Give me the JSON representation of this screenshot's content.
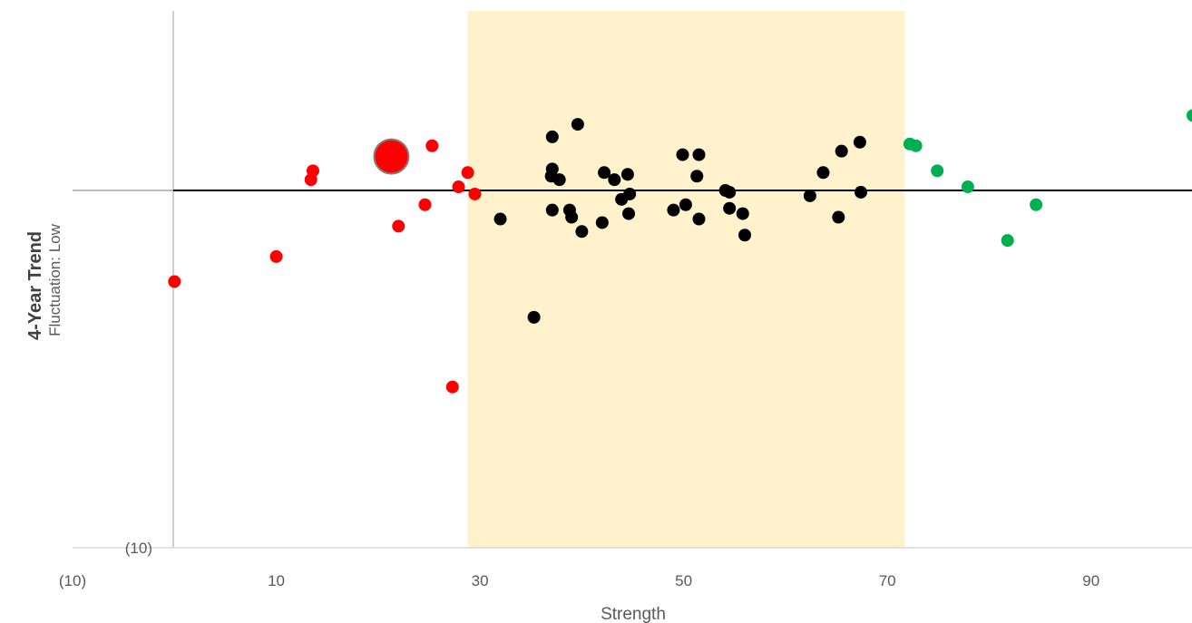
{
  "chart_data": {
    "type": "scatter",
    "title": "",
    "xlabel": "Strength",
    "ylabel": "4-Year Trend",
    "ylabel_sub": "Fluctuation: Low",
    "xlim": [
      -10,
      100
    ],
    "ylim": [
      -10,
      5
    ],
    "x_ticks": [
      {
        "value": -10,
        "label": "(10)"
      },
      {
        "value": 10,
        "label": "10"
      },
      {
        "value": 30,
        "label": "30"
      },
      {
        "value": 50,
        "label": "50"
      },
      {
        "value": 70,
        "label": "70"
      },
      {
        "value": 90,
        "label": "90"
      }
    ],
    "y_ticks": [
      {
        "value": -10,
        "label": "(10)"
      }
    ],
    "grid": false,
    "legend": "none",
    "band": {
      "x_start": 28.8,
      "x_end": 71.7,
      "color": "#FFF2CC"
    },
    "reference_line": {
      "y": 0,
      "color": "#000000"
    },
    "colors": {
      "low": "#FF0000",
      "mid": "#000000",
      "high": "#00B050",
      "y_axis": "#BFBFBF",
      "x_axis": "#D9D9D9"
    },
    "series": [
      {
        "group": "low",
        "color": "#FF0000",
        "points": [
          [
            0,
            -2.55
          ],
          [
            10,
            -1.85
          ],
          [
            13.4,
            0.3
          ],
          [
            13.6,
            0.55
          ],
          [
            21.5,
            0.95
          ],
          [
            22,
            -1
          ],
          [
            24.6,
            -0.4
          ],
          [
            25.3,
            1.25
          ],
          [
            27.3,
            -5.5
          ],
          [
            27.9,
            0.1
          ],
          [
            28.8,
            0.5
          ],
          [
            29.5,
            -0.1
          ]
        ],
        "highlight": {
          "x": 21.3,
          "y": 0.95,
          "color": "#FF0000",
          "stroke": "#808080"
        }
      },
      {
        "group": "mid",
        "color": "#000000",
        "points": [
          [
            32,
            -0.8
          ],
          [
            35.3,
            -3.55
          ],
          [
            37.1,
            1.5
          ],
          [
            37.1,
            0.6
          ],
          [
            37,
            0.4
          ],
          [
            37.1,
            -0.55
          ],
          [
            37.8,
            0.3
          ],
          [
            38.8,
            -0.55
          ],
          [
            39,
            -0.75
          ],
          [
            39.6,
            1.85
          ],
          [
            40,
            -1.15
          ],
          [
            42,
            -0.9
          ],
          [
            42.2,
            0.5
          ],
          [
            43.2,
            0.3
          ],
          [
            43.9,
            -0.25
          ],
          [
            44.5,
            0.45
          ],
          [
            44.7,
            -0.1
          ],
          [
            44.6,
            -0.65
          ],
          [
            49,
            -0.55
          ],
          [
            49.9,
            1.0
          ],
          [
            50.2,
            -0.4
          ],
          [
            51.3,
            0.4
          ],
          [
            51.5,
            1.0
          ],
          [
            51.5,
            -0.8
          ],
          [
            54.1,
            0.0
          ],
          [
            54.5,
            -0.05
          ],
          [
            54.5,
            -0.5
          ],
          [
            55.8,
            -0.65
          ],
          [
            56,
            -1.25
          ],
          [
            62.4,
            -0.15
          ],
          [
            63.7,
            0.5
          ],
          [
            65.2,
            -0.75
          ],
          [
            65.5,
            1.1
          ],
          [
            67.3,
            1.35
          ],
          [
            67.4,
            -0.05
          ]
        ]
      },
      {
        "group": "high",
        "color": "#00B050",
        "points": [
          [
            72.2,
            1.3
          ],
          [
            72.8,
            1.25
          ],
          [
            74.9,
            0.55
          ],
          [
            77.9,
            0.1
          ],
          [
            81.8,
            -1.4
          ],
          [
            84.6,
            -0.4
          ],
          [
            100,
            2.1
          ]
        ]
      }
    ]
  }
}
